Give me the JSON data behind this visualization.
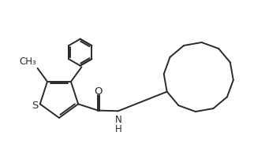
{
  "background_color": "#ffffff",
  "line_color": "#2a2a2a",
  "line_width": 1.4,
  "font_size": 9,
  "figsize": [
    3.55,
    1.96
  ],
  "dpi": 100,
  "xlim": [
    0,
    10.0
  ],
  "ylim": [
    0,
    5.5
  ]
}
